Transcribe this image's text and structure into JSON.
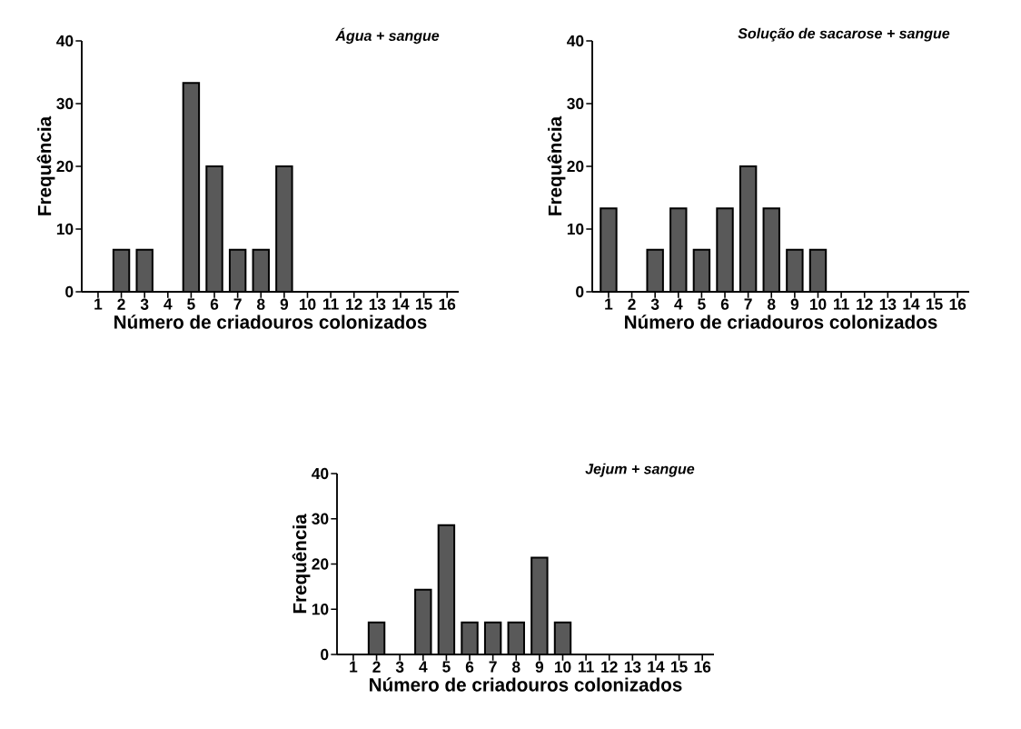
{
  "chart_data": [
    {
      "type": "bar",
      "title": "Água + sangue",
      "xlabel": "Número de criadouros colonizados",
      "ylabel": "Frequência",
      "categories": [
        "1",
        "2",
        "3",
        "4",
        "5",
        "6",
        "7",
        "8",
        "9",
        "10",
        "11",
        "12",
        "13",
        "14",
        "15",
        "16"
      ],
      "values": [
        0,
        6.7,
        6.7,
        0,
        33.3,
        20,
        6.7,
        6.7,
        20,
        0,
        0,
        0,
        0,
        0,
        0,
        0
      ],
      "color": "#595959",
      "ylim": [
        0,
        40
      ],
      "yticks": [
        0,
        10,
        20,
        30,
        40
      ]
    },
    {
      "type": "bar",
      "title": "Solução de sacarose + sangue",
      "xlabel": "Número de criadouros colonizados",
      "ylabel": "Frequência",
      "categories": [
        "1",
        "2",
        "3",
        "4",
        "5",
        "6",
        "7",
        "8",
        "9",
        "10",
        "11",
        "12",
        "13",
        "14",
        "15",
        "16"
      ],
      "values": [
        13.3,
        0,
        6.7,
        13.3,
        6.7,
        13.3,
        20,
        13.3,
        6.7,
        6.7,
        0,
        0,
        0,
        0,
        0,
        0
      ],
      "color": "#595959",
      "ylim": [
        0,
        40
      ],
      "yticks": [
        0,
        10,
        20,
        30,
        40
      ]
    },
    {
      "type": "bar",
      "title": "Jejum + sangue",
      "xlabel": "Número de criadouros colonizados",
      "ylabel": "Frequência",
      "categories": [
        "1",
        "2",
        "3",
        "4",
        "5",
        "6",
        "7",
        "8",
        "9",
        "10",
        "11",
        "12",
        "13",
        "14",
        "15",
        "16"
      ],
      "values": [
        0,
        7.1,
        0,
        14.3,
        28.6,
        7.1,
        7.1,
        7.1,
        21.4,
        7.1,
        0,
        0,
        0,
        0,
        0,
        0
      ],
      "color": "#595959",
      "ylim": [
        0,
        40
      ],
      "yticks": [
        0,
        10,
        20,
        30,
        40
      ]
    }
  ]
}
